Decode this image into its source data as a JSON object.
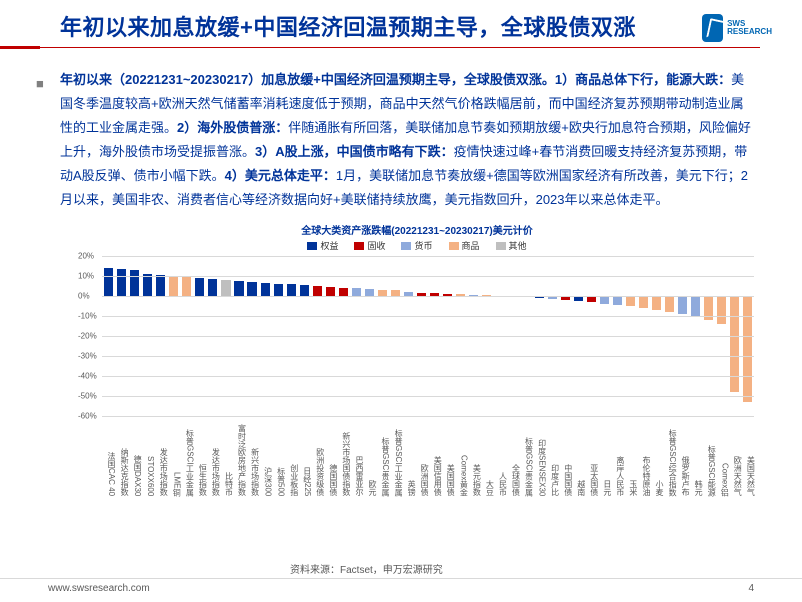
{
  "header": {
    "title": "年初以来加息放缓+中国经济回温预期主导，全球股债双涨",
    "logo_brand": "SWS",
    "logo_sub": "RESEARCH"
  },
  "body": {
    "lead": "年初以来（20221231~20230217）加息放缓+中国经济回温预期主导，全球股债双涨。1）商品总体下行，能源大跌：",
    "p1": "美国冬季温度较高+欧洲天然气储蓄率消耗速度低于预期，商品中天然气价格跌幅居前，而中国经济复苏预期带动制造业属性的工业金属走强。",
    "h2": "2）海外股债普涨：",
    "p2": "伴随通胀有所回落，美联储加息节奏如预期放缓+欧央行加息符合预期，风险偏好上升，海外股债市场受提振普涨。",
    "h3": "3）A股上涨，中国债市略有下跌：",
    "p3": "疫情快速过峰+春节消费回暖支持经济复苏预期，带动A股反弹、债市小幅下跌。",
    "h4": "4）美元总体走平：",
    "p4": "1月，美联储加息节奏放缓+德国等欧洲国家经济有所改善，美元下行；2月以来，美国非农、消费者信心等经济数据向好+美联储持续放鹰，美元指数回升，2023年以来总体走平。"
  },
  "chart": {
    "title": "全球大类资产涨跌幅(20221231~20230217)美元计价",
    "legend": [
      {
        "label": "权益",
        "color": "#003399"
      },
      {
        "label": "固收",
        "color": "#c00000"
      },
      {
        "label": "货币",
        "color": "#8faadc"
      },
      {
        "label": "商品",
        "color": "#f4b183"
      },
      {
        "label": "其他",
        "color": "#bfbfbf"
      }
    ],
    "ylim": [
      -60,
      20
    ],
    "ytick_step": 10,
    "grid_color": "#d9d9d9",
    "background_color": "#ffffff",
    "label_fontsize": 8,
    "title_fontsize": 10,
    "bars": [
      {
        "label": "法国CAC 40",
        "value": 14,
        "cat": 0
      },
      {
        "label": "纳斯达克指数",
        "value": 13.5,
        "cat": 0
      },
      {
        "label": "德国DAX30",
        "value": 13,
        "cat": 0
      },
      {
        "label": "STOXX600",
        "value": 11,
        "cat": 0
      },
      {
        "label": "发达市场指数",
        "value": 10.5,
        "cat": 0
      },
      {
        "label": "LME铜",
        "value": 10,
        "cat": 3
      },
      {
        "label": "标普GSCI工业金属",
        "value": 9.5,
        "cat": 3
      },
      {
        "label": "恒生指数",
        "value": 9,
        "cat": 0
      },
      {
        "label": "发达市场指数",
        "value": 8.5,
        "cat": 0
      },
      {
        "label": "比特币",
        "value": 8,
        "cat": 4
      },
      {
        "label": "富时泛欧房地产指数",
        "value": 7.5,
        "cat": 0
      },
      {
        "label": "新兴市场指数",
        "value": 7,
        "cat": 0
      },
      {
        "label": "沪深300",
        "value": 6.5,
        "cat": 0
      },
      {
        "label": "标普500",
        "value": 6,
        "cat": 0
      },
      {
        "label": "创业板指",
        "value": 6,
        "cat": 0
      },
      {
        "label": "日经225",
        "value": 5.5,
        "cat": 0
      },
      {
        "label": "欧洲投资级债",
        "value": 5,
        "cat": 1
      },
      {
        "label": "德国国债",
        "value": 4.5,
        "cat": 1
      },
      {
        "label": "新兴市场国债指数",
        "value": 4,
        "cat": 1
      },
      {
        "label": "巴西雷亚尔",
        "value": 4,
        "cat": 2
      },
      {
        "label": "欧元",
        "value": 3.5,
        "cat": 2
      },
      {
        "label": "标普GSCI贵金属",
        "value": 3,
        "cat": 3
      },
      {
        "label": "标普GSCI工业金属",
        "value": 3,
        "cat": 3
      },
      {
        "label": "英镑",
        "value": 2,
        "cat": 2
      },
      {
        "label": "欧洲国债",
        "value": 1.5,
        "cat": 1
      },
      {
        "label": "美国信用债",
        "value": 1.5,
        "cat": 1
      },
      {
        "label": "美国国债",
        "value": 1,
        "cat": 1
      },
      {
        "label": "Comex黄金",
        "value": 1,
        "cat": 3
      },
      {
        "label": "美元指数",
        "value": 0.5,
        "cat": 2
      },
      {
        "label": "大豆",
        "value": 0.5,
        "cat": 3
      },
      {
        "label": "人民币",
        "value": 0,
        "cat": 2
      },
      {
        "label": "全球国债",
        "value": 0,
        "cat": 1
      },
      {
        "label": "标普GSCI贵金属",
        "value": -0.5,
        "cat": 3
      },
      {
        "label": "印度SENSEX30",
        "value": -1,
        "cat": 0
      },
      {
        "label": "印度卢比",
        "value": -1.5,
        "cat": 2
      },
      {
        "label": "中国国债",
        "value": -2,
        "cat": 1
      },
      {
        "label": "越南",
        "value": -2.5,
        "cat": 0
      },
      {
        "label": "亚太国债",
        "value": -3,
        "cat": 1
      },
      {
        "label": "日元",
        "value": -4,
        "cat": 2
      },
      {
        "label": "离岸人民币",
        "value": -4.5,
        "cat": 2
      },
      {
        "label": "玉米",
        "value": -5,
        "cat": 3
      },
      {
        "label": "布伦特原油",
        "value": -6,
        "cat": 3
      },
      {
        "label": "小麦",
        "value": -7,
        "cat": 3
      },
      {
        "label": "标普GSCI综合指数",
        "value": -8,
        "cat": 3
      },
      {
        "label": "俄罗斯卢布",
        "value": -9,
        "cat": 2
      },
      {
        "label": "韩元",
        "value": -10,
        "cat": 2
      },
      {
        "label": "标普GSCI能源",
        "value": -12,
        "cat": 3
      },
      {
        "label": "Comex铝",
        "value": -14,
        "cat": 3
      },
      {
        "label": "欧洲天然气",
        "value": -48,
        "cat": 3
      },
      {
        "label": "美国天然气",
        "value": -53,
        "cat": 3
      }
    ]
  },
  "source": "资料来源：Factset，申万宏源研究",
  "footer": {
    "url": "www.swsresearch.com",
    "page": "4"
  }
}
